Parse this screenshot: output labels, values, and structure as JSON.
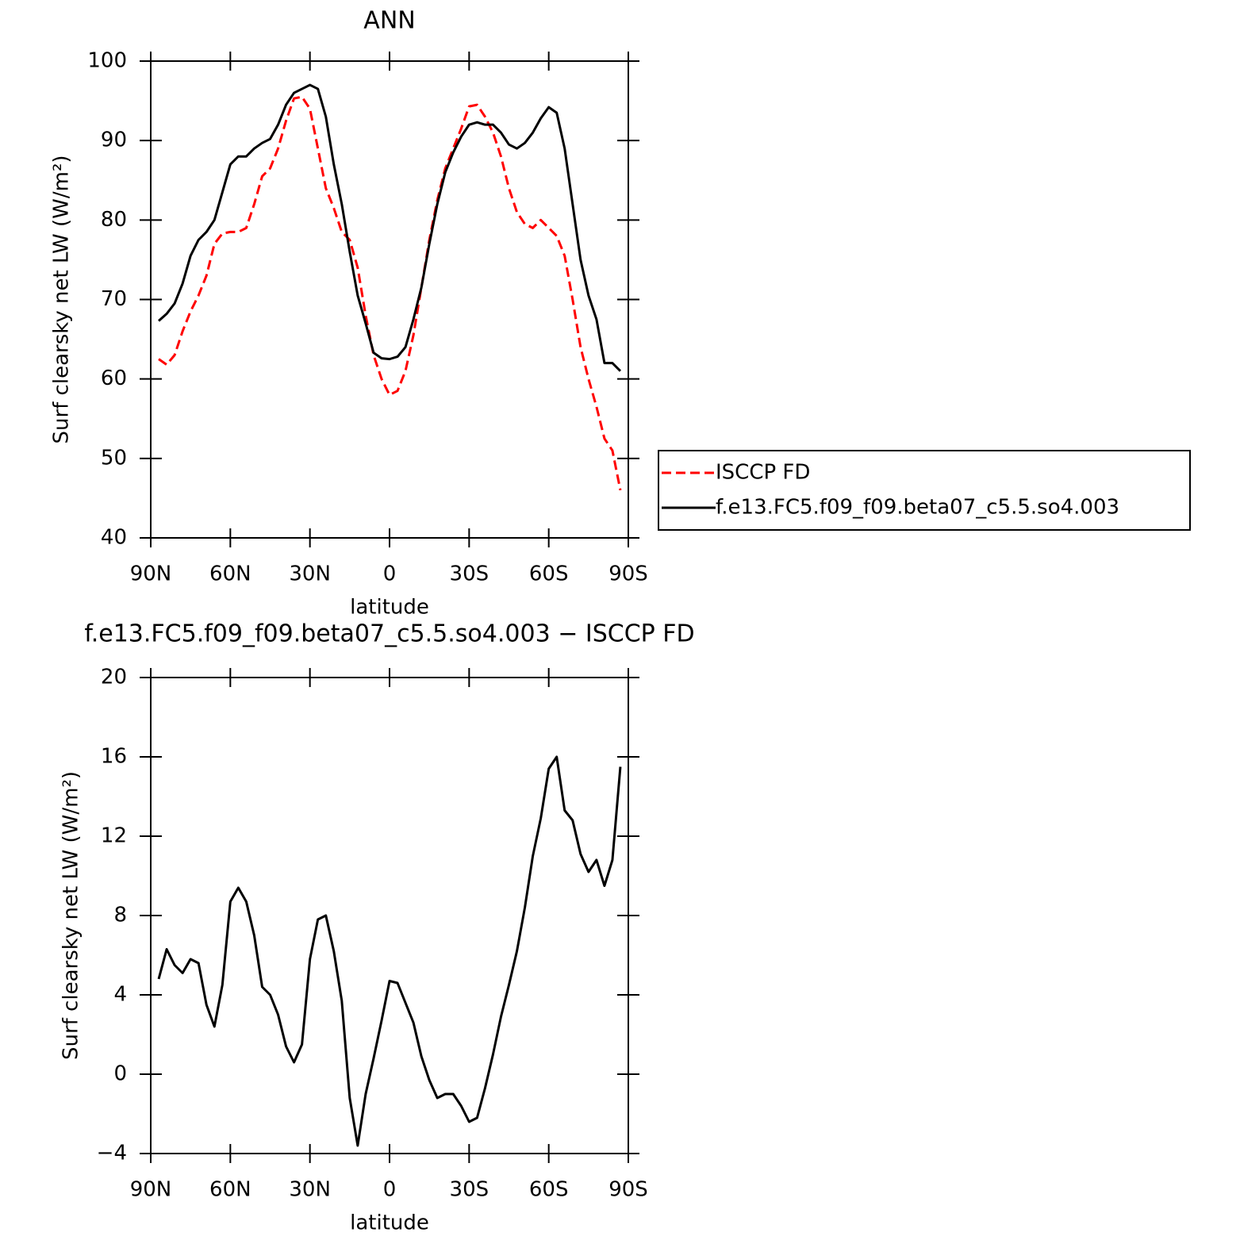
{
  "chart_data": [
    {
      "type": "line",
      "title": "ANN",
      "x_label": "latitude",
      "y_label": "Surf clearsky net LW (W/m²)",
      "x": [
        87,
        84,
        81,
        78,
        75,
        72,
        69,
        66,
        63,
        60,
        57,
        54,
        51,
        48,
        45,
        42,
        39,
        36,
        33,
        30,
        27,
        24,
        21,
        18,
        15,
        12,
        9,
        6,
        3,
        0,
        -3,
        -6,
        -9,
        -12,
        -15,
        -18,
        -21,
        -24,
        -27,
        -30,
        -33,
        -36,
        -39,
        -42,
        -45,
        -48,
        -51,
        -54,
        -57,
        -60,
        -63,
        -66,
        -69,
        -72,
        -75,
        -78,
        -81,
        -84,
        -87
      ],
      "series": [
        {
          "name": "ISCCP FD",
          "color": "#ff0000",
          "style": "dashed",
          "values": [
            62.5,
            61.8,
            63,
            66,
            68.5,
            70.5,
            73,
            77,
            78.3,
            78.5,
            78.5,
            79,
            82,
            85.5,
            86.5,
            89,
            92.5,
            95.3,
            95.5,
            94,
            89,
            84,
            81.5,
            78.5,
            77.5,
            74,
            68,
            63,
            60,
            58,
            58.5,
            61,
            65.5,
            71.5,
            77.5,
            82.5,
            86.5,
            89,
            91.5,
            94.3,
            94.5,
            93,
            91,
            88,
            84,
            81,
            79.5,
            79,
            80,
            79,
            78,
            75.5,
            70,
            64,
            60,
            56.5,
            52.5,
            51,
            46
          ]
        },
        {
          "name": "f.e13.FC5.f09_f09.beta07_c5.5.so4.003",
          "color": "#000000",
          "style": "solid",
          "values": [
            67.3,
            68.2,
            69.5,
            72,
            75.5,
            77.5,
            78.5,
            80,
            83.5,
            87,
            88,
            88,
            89,
            89.7,
            90.2,
            92,
            94.5,
            96,
            96.5,
            97,
            96.5,
            93,
            87,
            82,
            76,
            70.5,
            67,
            63.3,
            62.6,
            62.5,
            62.8,
            64,
            67.5,
            71.5,
            77,
            82,
            86,
            88.5,
            90.5,
            92,
            92.3,
            92,
            92,
            91,
            89.5,
            89,
            89.7,
            91,
            92.8,
            94.2,
            93.5,
            89,
            82,
            75,
            70.5,
            67.5,
            62,
            62,
            61
          ]
        }
      ],
      "xlim": [
        90,
        -90
      ],
      "xticks": [
        {
          "value": 90,
          "label": "90N"
        },
        {
          "value": 60,
          "label": "60N"
        },
        {
          "value": 30,
          "label": "30N"
        },
        0,
        {
          "value": -30,
          "label": "30S"
        },
        {
          "value": -60,
          "label": "60S"
        },
        {
          "value": -90,
          "label": "90S"
        }
      ],
      "ylim": [
        40,
        100
      ],
      "yticks": [
        40,
        50,
        60,
        70,
        80,
        90,
        100
      ],
      "legend": "right"
    },
    {
      "type": "line",
      "title": "f.e13.FC5.f09_f09.beta07_c5.5.so4.003 − ISCCP FD",
      "x_label": "latitude",
      "y_label": "Surf clearsky net LW (W/m²)",
      "x": [
        87,
        84,
        81,
        78,
        75,
        72,
        69,
        66,
        63,
        60,
        57,
        54,
        51,
        48,
        45,
        42,
        39,
        36,
        33,
        30,
        27,
        24,
        21,
        18,
        15,
        12,
        9,
        6,
        3,
        0,
        -3,
        -6,
        -9,
        -12,
        -15,
        -18,
        -21,
        -24,
        -27,
        -30,
        -33,
        -36,
        -39,
        -42,
        -45,
        -48,
        -51,
        -54,
        -57,
        -60,
        -63,
        -66,
        -69,
        -72,
        -75,
        -78,
        -81,
        -84,
        -87
      ],
      "series": [
        {
          "color": "#000000",
          "style": "solid",
          "values": [
            4.8,
            6.3,
            5.5,
            5.1,
            5.8,
            5.6,
            3.5,
            2.4,
            4.5,
            8.7,
            9.4,
            8.7,
            7,
            4.4,
            4,
            3,
            1.4,
            0.6,
            1.5,
            5.8,
            7.8,
            8,
            6.2,
            3.7,
            -1.2,
            -3.6,
            -1,
            0.8,
            2.7,
            4.7,
            4.6,
            3.6,
            2.6,
            0.9,
            -0.3,
            -1.2,
            -1,
            -1,
            -1.6,
            -2.4,
            -2.2,
            -0.7,
            1,
            2.9,
            4.5,
            6.2,
            8.4,
            11,
            12.9,
            15.4,
            16,
            13.3,
            12.8,
            11.1,
            10.2,
            10.8,
            9.5,
            10.8,
            15.5
          ]
        }
      ],
      "xlim": [
        90,
        -90
      ],
      "xticks": [
        {
          "value": 90,
          "label": "90N"
        },
        {
          "value": 60,
          "label": "60N"
        },
        {
          "value": 30,
          "label": "30N"
        },
        0,
        {
          "value": -30,
          "label": "30S"
        },
        {
          "value": -60,
          "label": "60S"
        },
        {
          "value": -90,
          "label": "90S"
        }
      ],
      "ylim": [
        -4,
        20
      ],
      "yticks": [
        {
          "value": -4,
          "label": "−4"
        },
        0,
        4,
        8,
        12,
        16,
        20
      ]
    }
  ]
}
